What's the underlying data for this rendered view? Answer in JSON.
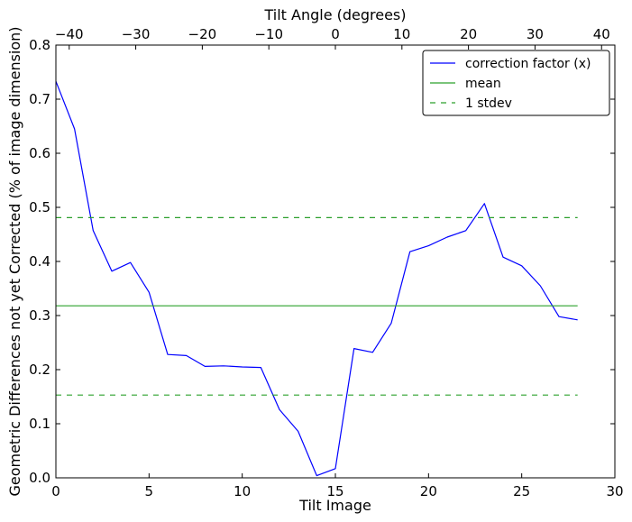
{
  "chart_data": {
    "type": "line",
    "title": "",
    "xlabel": "Tilt Image",
    "ylabel": "Geometric Differences not yet Corrected (% of image dimension)",
    "top_xlabel": "Tilt Angle (degrees)",
    "xlim": [
      0,
      30
    ],
    "ylim": [
      0.0,
      0.8
    ],
    "top_xlim": [
      -42,
      42
    ],
    "xticks": [
      "0",
      "5",
      "10",
      "15",
      "20",
      "25",
      "30"
    ],
    "yticks": [
      "0.0",
      "0.1",
      "0.2",
      "0.3",
      "0.4",
      "0.5",
      "0.6",
      "0.7",
      "0.8"
    ],
    "top_xticks": [
      "−40",
      "−30",
      "−20",
      "−10",
      "0",
      "10",
      "20",
      "30",
      "40"
    ],
    "grid": false,
    "legend_position": "top-right",
    "series": [
      {
        "name": "correction factor (x)",
        "color": "#0000ff",
        "style": "solid",
        "x": [
          0,
          1,
          2,
          3,
          4,
          5,
          6,
          7,
          8,
          9,
          10,
          11,
          12,
          13,
          14,
          15,
          16,
          17,
          18,
          19,
          20,
          21,
          22,
          23,
          24,
          25,
          26,
          27,
          28
        ],
        "y": [
          0.733,
          0.645,
          0.457,
          0.382,
          0.398,
          0.343,
          0.228,
          0.226,
          0.206,
          0.207,
          0.205,
          0.204,
          0.126,
          0.086,
          0.004,
          0.017,
          0.239,
          0.232,
          0.286,
          0.418,
          0.429,
          0.445,
          0.457,
          0.507,
          0.408,
          0.392,
          0.355,
          0.298,
          0.292
        ]
      },
      {
        "name": "mean",
        "color": "#2ca02c",
        "style": "solid",
        "x": [
          0,
          28
        ],
        "y": [
          0.318,
          0.318
        ]
      },
      {
        "name": "1 stdev",
        "color": "#2ca02c",
        "style": "dashed",
        "x": [
          0,
          28
        ],
        "y": [
          0.481,
          0.481
        ]
      },
      {
        "name": "",
        "color": "#2ca02c",
        "style": "dashed",
        "x": [
          0,
          28
        ],
        "y": [
          0.153,
          0.153
        ]
      }
    ]
  }
}
